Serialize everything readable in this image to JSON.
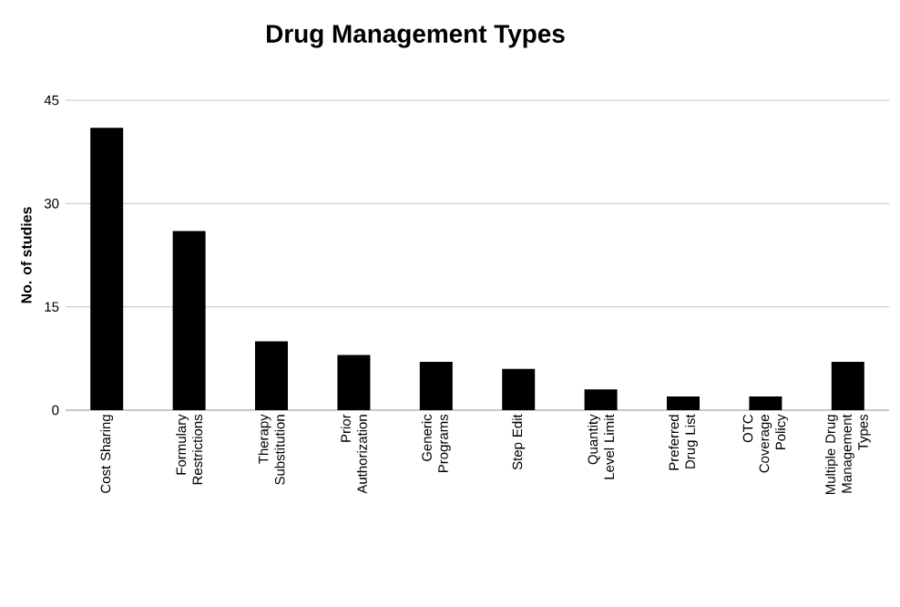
{
  "chart_data": {
    "type": "bar",
    "title": "Drug Management Types",
    "ylabel": "No. of studies",
    "categories": [
      "Cost Sharing",
      "Formulary Restrictions",
      "Therapy Substitution",
      "Prior Authorization",
      "Generic Programs",
      "Step Edit",
      "Quantity Level Limit",
      "Preferred Drug List",
      "OTC Coverage Policy",
      "Multiple Drug Management Types"
    ],
    "values": [
      41,
      26,
      10,
      8,
      7,
      6,
      3,
      2,
      2,
      7
    ],
    "color": "#000000",
    "ylim": [
      0,
      45
    ],
    "yticks": [
      0,
      15,
      30,
      45
    ],
    "grid": "y"
  }
}
